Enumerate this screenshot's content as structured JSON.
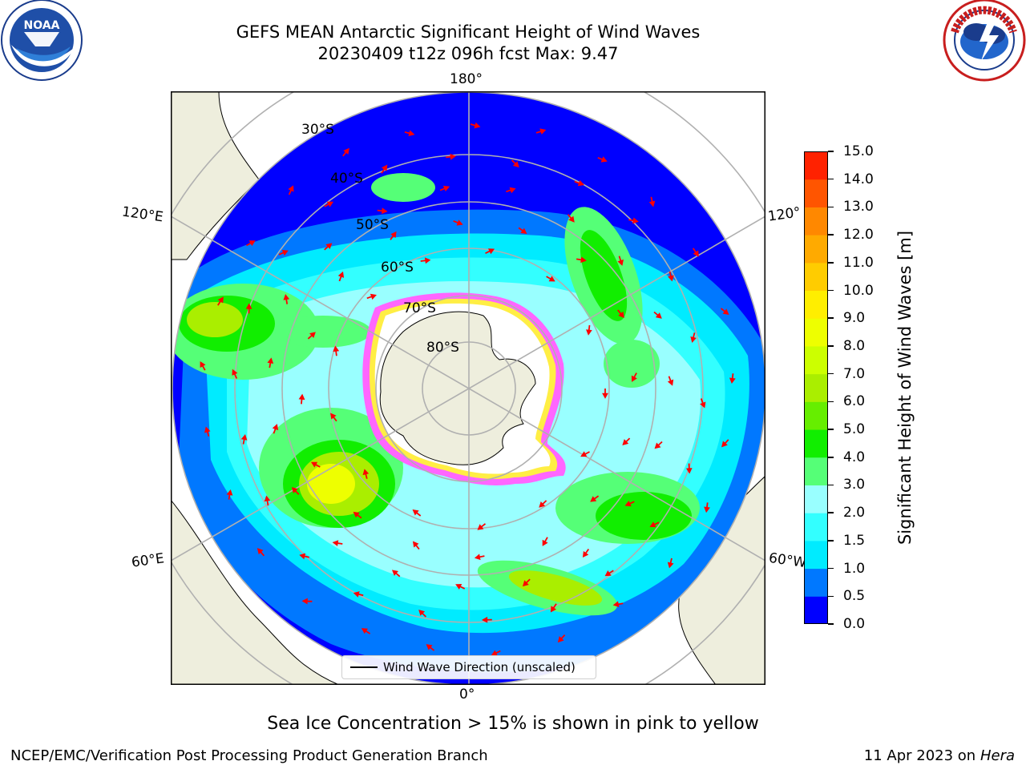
{
  "header": {
    "title_line1": "GEFS MEAN Antarctic Significant Height of Wind Waves",
    "title_line2": "20230409 t12z 096h fcst   Max: 9.47"
  },
  "logos": {
    "left_text": "NOAA",
    "left_ring_text": "NATIONAL OCEANIC AND ATMOSPHERIC ADMINISTRATION · U.S. DEPARTMENT OF COMMERCE",
    "right_ring_text": "NATIONAL WEATHER SERVICE"
  },
  "map": {
    "longitude_labels": {
      "top": "180°",
      "bottom": "0°",
      "left_upper": "120°E",
      "left_lower": "60°E",
      "right_upper": "120°",
      "right_lower": "60°W"
    },
    "latitude_labels": [
      "30°S",
      "40°S",
      "50°S",
      "60°S",
      "70°S",
      "80°S"
    ],
    "legend_label": "Wind Wave Direction (unscaled)",
    "colors": {
      "land": "#eeeedd",
      "ice": "#ffffff",
      "arrow": "#ff0000",
      "grid": "#b0b0b0"
    }
  },
  "colorbar": {
    "label": "Significant Height of Wind Waves [m]",
    "ticks": [
      "0.0",
      "0.5",
      "1.0",
      "1.5",
      "2.0",
      "3.0",
      "4.0",
      "5.0",
      "6.0",
      "7.0",
      "8.0",
      "9.0",
      "10.0",
      "11.0",
      "12.0",
      "13.0",
      "14.0",
      "15.0"
    ],
    "colors": [
      "#0000ff",
      "#0078ff",
      "#00ebff",
      "#33ffff",
      "#99ffff",
      "#55ff77",
      "#11ee00",
      "#66ee00",
      "#aaee00",
      "#ccff00",
      "#eeff00",
      "#ffee00",
      "#ffcc00",
      "#ffaa00",
      "#ff8800",
      "#ff5500",
      "#ff2200"
    ]
  },
  "footer": {
    "note": "Sea Ice Concentration > 15% is shown in pink to yellow",
    "left": "NCEP/EMC/Verification Post Processing Product Generation Branch",
    "right_date": "11 Apr 2023 on ",
    "right_machine": "Hera"
  }
}
